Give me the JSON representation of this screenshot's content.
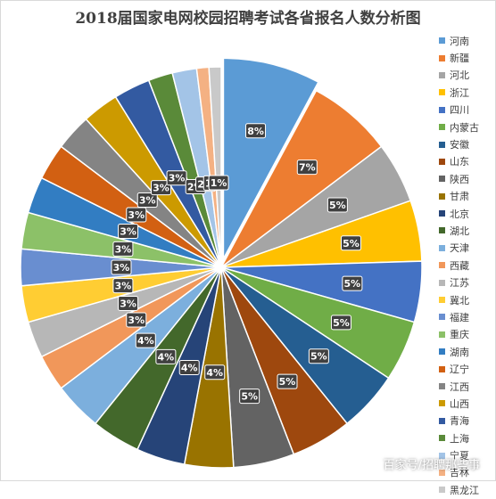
{
  "chart_data": {
    "type": "pie",
    "title": "2018届国家电网校园招聘考试各省报名人数分析图",
    "categories": [
      "河南",
      "新疆",
      "河北",
      "浙江",
      "四川",
      "内蒙古",
      "安徽",
      "山东",
      "陕西",
      "甘肃",
      "北京",
      "湖北",
      "天津",
      "西藏",
      "江苏",
      "冀北",
      "福建",
      "重庆",
      "湖南",
      "辽宁",
      "江西",
      "山西",
      "青海",
      "上海",
      "宁夏",
      "吉林",
      "黑龙江"
    ],
    "values": [
      8,
      7,
      5,
      5,
      5,
      5,
      5,
      5,
      5,
      4,
      4,
      4,
      4,
      3,
      3,
      3,
      3,
      3,
      3,
      3,
      3,
      3,
      3,
      2,
      2,
      1,
      1
    ],
    "labels": [
      "8%",
      "7%",
      "5%",
      "5%",
      "5%",
      "5%",
      "5%",
      "5%",
      "5%",
      "4%",
      "4%",
      "4%",
      "4%",
      "3%",
      "3%",
      "3%",
      "3%",
      "3%",
      "3%",
      "3%",
      "3%",
      "3%",
      "3%",
      "2%",
      "2%",
      "1%",
      "1%"
    ],
    "colors": [
      "#5B9BD5",
      "#ED7D31",
      "#A5A5A5",
      "#FFC000",
      "#4472C4",
      "#70AD47",
      "#255E91",
      "#9E480E",
      "#636363",
      "#997300",
      "#264478",
      "#43682B",
      "#7CAFDD",
      "#F1975A",
      "#B7B7B7",
      "#FFCD33",
      "#698ED0",
      "#8CC168",
      "#327DC2",
      "#D26012",
      "#848484",
      "#CC9A00",
      "#335AA1",
      "#5A8A39",
      "#A3C4E7",
      "#F4B183",
      "#C9C9C9"
    ],
    "legend_position": "right"
  },
  "watermark": "百家号/招聘那些事"
}
